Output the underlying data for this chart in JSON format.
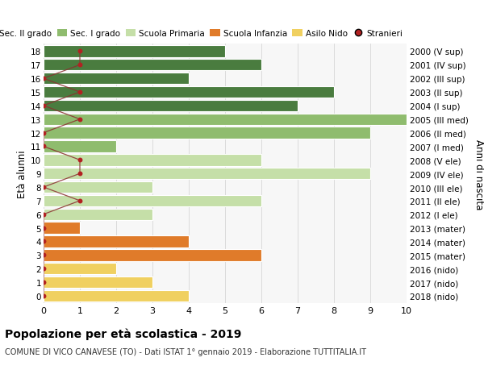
{
  "ages": [
    18,
    17,
    16,
    15,
    14,
    13,
    12,
    11,
    10,
    9,
    8,
    7,
    6,
    5,
    4,
    3,
    2,
    1,
    0
  ],
  "years": [
    "2000 (V sup)",
    "2001 (IV sup)",
    "2002 (III sup)",
    "2003 (II sup)",
    "2004 (I sup)",
    "2005 (III med)",
    "2006 (II med)",
    "2007 (I med)",
    "2008 (V ele)",
    "2009 (IV ele)",
    "2010 (III ele)",
    "2011 (II ele)",
    "2012 (I ele)",
    "2013 (mater)",
    "2014 (mater)",
    "2015 (mater)",
    "2016 (nido)",
    "2017 (nido)",
    "2018 (nido)"
  ],
  "bar_values": [
    5,
    6,
    4,
    8,
    7,
    10,
    9,
    2,
    6,
    9,
    3,
    6,
    3,
    1,
    4,
    6,
    2,
    3,
    4
  ],
  "bar_colors": [
    "#4a7c3f",
    "#4a7c3f",
    "#4a7c3f",
    "#4a7c3f",
    "#4a7c3f",
    "#8fbc6e",
    "#8fbc6e",
    "#8fbc6e",
    "#c5dfa8",
    "#c5dfa8",
    "#c5dfa8",
    "#c5dfa8",
    "#c5dfa8",
    "#e07b2a",
    "#e07b2a",
    "#e07b2a",
    "#f0d060",
    "#f0d060",
    "#f0d060"
  ],
  "dot_x": [
    1,
    1,
    0,
    1,
    0,
    1,
    0,
    0,
    1,
    1,
    0,
    1,
    0,
    0,
    0,
    0,
    0,
    0,
    0
  ],
  "legend_labels": [
    "Sec. II grado",
    "Sec. I grado",
    "Scuola Primaria",
    "Scuola Infanzia",
    "Asilo Nido",
    "Stranieri"
  ],
  "legend_colors": [
    "#4a7c3f",
    "#8fbc6e",
    "#c5dfa8",
    "#e07b2a",
    "#f0d060",
    "#b22222"
  ],
  "title": "Popolazione per età scolastica - 2019",
  "subtitle": "COMUNE DI VICO CANAVESE (TO) - Dati ISTAT 1° gennaio 2019 - Elaborazione TUTTITALIA.IT",
  "ylabel_left": "Età alunni",
  "ylabel_right": "Anni di nascita",
  "background_color": "#ffffff",
  "plot_bg_color": "#f7f7f7",
  "grid_color": "#d0d0d0",
  "bar_height": 0.85,
  "xlim": [
    0,
    10
  ],
  "dot_color": "#b22222",
  "line_color": "#8b3030"
}
